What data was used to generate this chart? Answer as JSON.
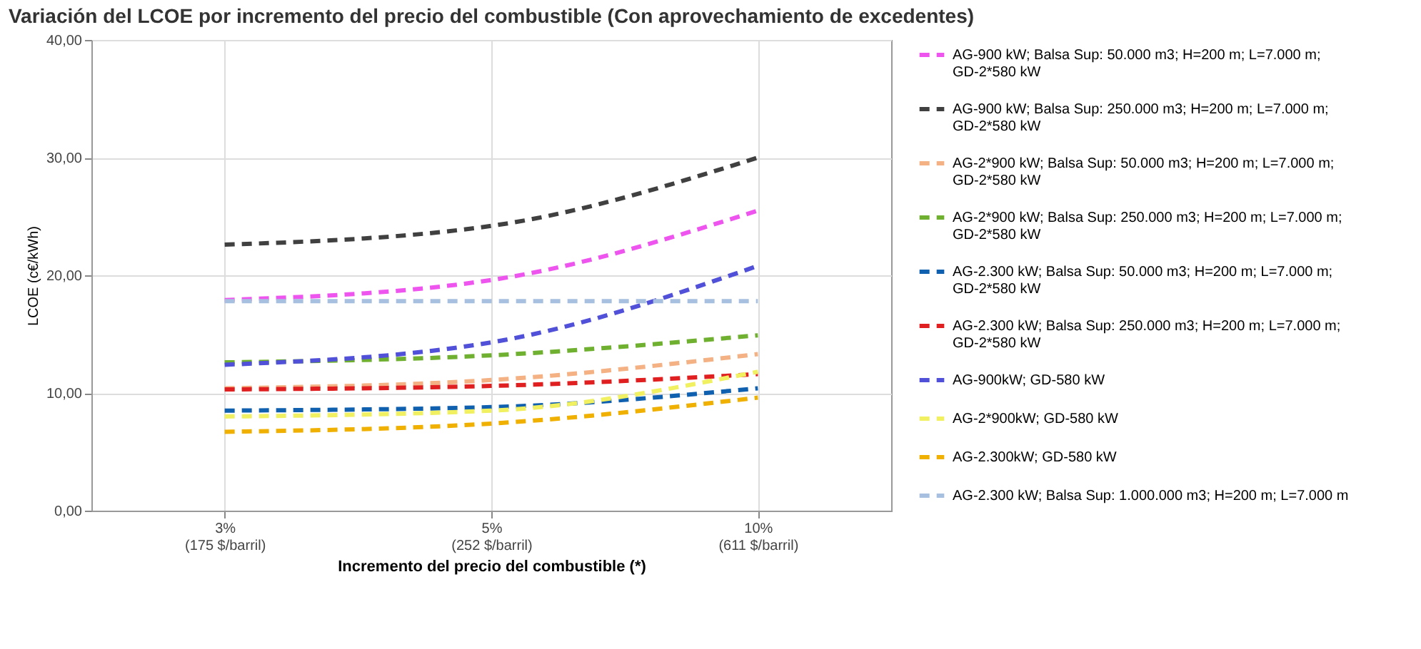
{
  "chart_data": {
    "type": "line",
    "title": "Variación del LCOE por incremento del precio del combustible (Con aprovechamiento de excedentes)",
    "xlabel": "Incremento del precio del combustible (*)",
    "ylabel": "LCOE (c€/kWh)",
    "categories": [
      "3%\n(175 $/barril)",
      "5%\n(252 $/barril)",
      "10%\n(611 $/barril)"
    ],
    "ylim": [
      0,
      40
    ],
    "yticks": [
      {
        "value": 0,
        "label": "0,00"
      },
      {
        "value": 10,
        "label": "10,00"
      },
      {
        "value": 20,
        "label": "20,00"
      },
      {
        "value": 30,
        "label": "30,00"
      },
      {
        "value": 40,
        "label": "40,00"
      }
    ],
    "grid": true,
    "legend": "right",
    "marker": "none",
    "line_style": "dashed",
    "series": [
      {
        "name": "AG-900 kW; Balsa Sup: 50.000 m3; H=200 m; L=7.000 m; GD-2*580 kW",
        "color": "#ee55ee",
        "values": [
          17.9,
          19.6,
          25.5
        ]
      },
      {
        "name": "AG-900 kW; Balsa Sup: 250.000 m3; H=200 m; L=7.000 m; GD-2*580 kW",
        "color": "#404040",
        "values": [
          22.6,
          24.2,
          30.0
        ]
      },
      {
        "name": "AG-2*900 kW; Balsa Sup: 50.000 m3; H=200 m; L=7.000 m; GD-2*580 kW",
        "color": "#f4b183",
        "values": [
          10.4,
          11.1,
          13.3
        ]
      },
      {
        "name": "AG-2*900 kW; Balsa Sup: 250.000 m3; H=200 m; L=7.000 m; GD-2*580 kW",
        "color": "#70b030",
        "values": [
          12.6,
          13.2,
          14.9
        ]
      },
      {
        "name": "AG-2.300 kW; Balsa Sup: 50.000 m3; H=200 m; L=7.000 m; GD-2*580 kW",
        "color": "#1060b0",
        "values": [
          8.5,
          8.8,
          10.4
        ]
      },
      {
        "name": "AG-2.300 kW; Balsa Sup: 250.000 m3; H=200 m; L=7.000 m; GD-2*580 kW",
        "color": "#e02020",
        "values": [
          10.3,
          10.6,
          11.6
        ]
      },
      {
        "name": "AG-900kW; GD-580 kW",
        "color": "#5050d8",
        "values": [
          12.4,
          14.3,
          20.8
        ]
      },
      {
        "name": "AG-2*900kW; GD-580 kW",
        "color": "#f0f060",
        "values": [
          8.0,
          8.5,
          11.8
        ]
      },
      {
        "name": "AG-2.300kW; GD-580 kW",
        "color": "#f0b000",
        "values": [
          6.7,
          7.4,
          9.6
        ]
      },
      {
        "name": "AG-2.300 kW; Balsa Sup: 1.000.000 m3; H=200 m; L=7.000 m",
        "color": "#a8c0e0",
        "values": [
          17.8,
          17.8,
          17.8
        ]
      }
    ]
  }
}
